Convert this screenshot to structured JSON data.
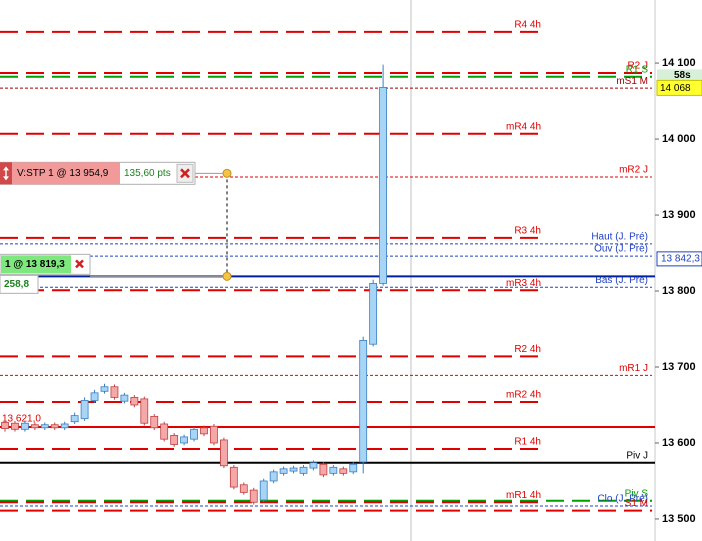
{
  "chart_data": {
    "type": "candlestick",
    "ylim": [
      13471,
      14183
    ],
    "yticks": [
      {
        "value": 14100,
        "label": "14 100"
      },
      {
        "value": 14000,
        "label": "14 000"
      },
      {
        "value": 13900,
        "label": "13 900"
      },
      {
        "value": 13800,
        "label": "13 800"
      },
      {
        "value": 13700,
        "label": "13 700"
      },
      {
        "value": 13600,
        "label": "13 600"
      },
      {
        "value": 13500,
        "label": "13 500"
      }
    ],
    "up_color": "#a8d4f5",
    "down_color": "#f5a8a8",
    "candles": {
      "open": [
        13627,
        13626,
        13618,
        13624,
        13620,
        13624,
        13620,
        13628,
        13632,
        13656,
        13668,
        13674,
        13655,
        13660,
        13658,
        13635,
        13625,
        13610,
        13600,
        13605,
        13620,
        13622,
        13604,
        13568,
        13545,
        13538,
        13525,
        13550,
        13560,
        13563,
        13560,
        13567,
        13572,
        13560,
        13566,
        13562,
        13575,
        13730,
        13810
      ],
      "close": [
        13619,
        13618,
        13626,
        13620,
        13624,
        13620,
        13625,
        13636,
        13656,
        13666,
        13674,
        13660,
        13663,
        13650,
        13626,
        13620,
        13605,
        13598,
        13608,
        13618,
        13612,
        13600,
        13570,
        13542,
        13535,
        13522,
        13550,
        13562,
        13566,
        13567,
        13568,
        13574,
        13558,
        13568,
        13560,
        13572,
        13735,
        13810,
        14068
      ],
      "high": [
        13630,
        13629,
        13629,
        13627,
        13627,
        13627,
        13628,
        13640,
        13660,
        13670,
        13678,
        13677,
        13666,
        13663,
        13661,
        13638,
        13628,
        13613,
        13611,
        13621,
        13623,
        13625,
        13607,
        13571,
        13548,
        13541,
        13553,
        13565,
        13569,
        13570,
        13571,
        13577,
        13575,
        13571,
        13569,
        13575,
        13740,
        13815,
        14098
      ],
      "low": [
        13615,
        13615,
        13615,
        13617,
        13617,
        13617,
        13617,
        13625,
        13629,
        13653,
        13665,
        13657,
        13652,
        13647,
        13623,
        13617,
        13602,
        13595,
        13597,
        13602,
        13609,
        13597,
        13567,
        13539,
        13532,
        13519,
        13522,
        13547,
        13557,
        13560,
        13557,
        13564,
        13555,
        13557,
        13557,
        13559,
        13560,
        13727,
        13807
      ]
    },
    "levels": [
      {
        "label": "R4 4h",
        "value": 14141,
        "color": "#e00000",
        "dash": "long"
      },
      {
        "label": "R2 J",
        "value": 14087,
        "color": "#e00000",
        "dash": "long"
      },
      {
        "label": "R1 S",
        "value": 14082,
        "color": "#00a000",
        "dash": "long"
      },
      {
        "label": "mS1 M",
        "value": 14067,
        "color": "#a00000",
        "dash": "thin"
      },
      {
        "label": "mR4 4h",
        "value": 14007,
        "color": "#e00000",
        "dash": "long"
      },
      {
        "label": "mR2 J",
        "value": 13950,
        "color": "#e00000",
        "dash": "thin"
      },
      {
        "label": "R3 4h",
        "value": 13870,
        "color": "#e00000",
        "dash": "long"
      },
      {
        "label": "Haut (J. Pré)",
        "value": 13862,
        "color": "#2040c0",
        "dash": "thin"
      },
      {
        "label": "Ouv (J. Pré)",
        "value": 13846,
        "color": "#2040c0",
        "dash": "thin"
      },
      {
        "label": "Bas (J. Pré)",
        "value": 13805,
        "color": "#2040c0",
        "dash": "thin"
      },
      {
        "label": "mR3 4h",
        "value": 13801,
        "color": "#e00000",
        "dash": "long"
      },
      {
        "label": "R2 4h",
        "value": 13714,
        "color": "#e00000",
        "dash": "long"
      },
      {
        "label": "mR1 J",
        "value": 13689,
        "color": "#e00000",
        "dash": "thin"
      },
      {
        "label": "mR2 4h",
        "value": 13654,
        "color": "#e00000",
        "dash": "long"
      },
      {
        "label": "13 621,0",
        "value": 13621,
        "color": "#e00000",
        "dash": "solid",
        "label_side": "left"
      },
      {
        "label": "R1 4h",
        "value": 13592,
        "color": "#e00000",
        "dash": "long"
      },
      {
        "label": "Piv J",
        "value": 13574,
        "color": "#000000",
        "dash": "solid"
      },
      {
        "label": "Piv S",
        "value": 13524,
        "color": "#00a000",
        "dash": "long"
      },
      {
        "label": "mR1 4h",
        "value": 13522,
        "color": "#e00000",
        "dash": "long"
      },
      {
        "label": "Clo (J. Pré)",
        "value": 13517,
        "color": "#2040c0",
        "dash": "thin"
      },
      {
        "label": "S1 M",
        "value": 13511,
        "color": "#e00000",
        "dash": "long"
      }
    ],
    "price": {
      "value": 14068,
      "label": "14 068"
    },
    "timer": "58s",
    "last": {
      "value": 13842.3,
      "label": "13 842,3"
    },
    "orders": [
      {
        "label": "V:STP  1 @ 13 954,9",
        "value": 13954.9,
        "pts": "135,60 pts"
      },
      {
        "label": "1 @ 13 819,3",
        "value": 13819.3,
        "pts": "258,8"
      }
    ]
  }
}
